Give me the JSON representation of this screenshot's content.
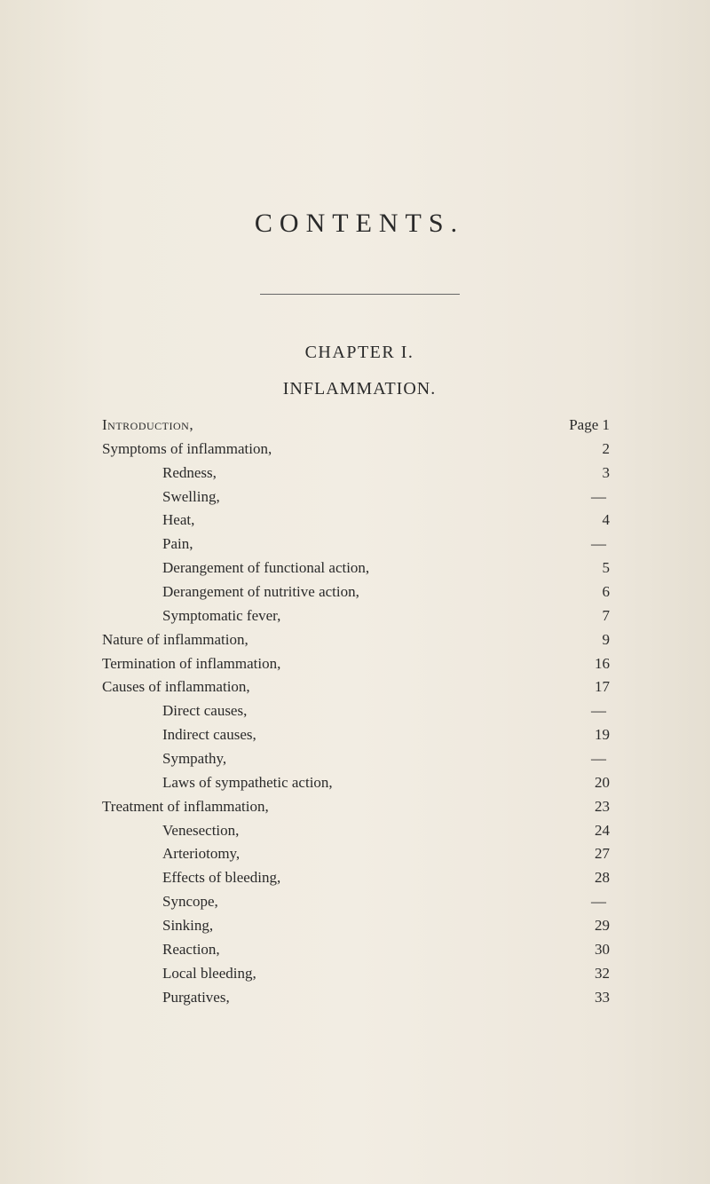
{
  "mainTitle": "CONTENTS.",
  "chapterTitle": "CHAPTER I.",
  "subjectTitle": "INFLAMMATION.",
  "pagePrefix": "Page",
  "entries": [
    {
      "label": "Introduction,",
      "page": "1",
      "indent": 0,
      "smallcaps": true,
      "dashesBetween": 2
    },
    {
      "label": "Symptoms of inflammation,",
      "page": "2",
      "indent": 0,
      "dashesBetween": 2
    },
    {
      "label": "Redness,",
      "page": "3",
      "indent": 1,
      "dashesBetween": 2
    },
    {
      "label": "Swelling,",
      "page": "—",
      "indent": 1,
      "dashesBetween": 2
    },
    {
      "label": "Heat,",
      "page": "4",
      "indent": 1,
      "dashesBetween": 1
    },
    {
      "label": "Pain,",
      "page": "—",
      "indent": 1,
      "dashesBetween": 3
    },
    {
      "label": "Derangement of functional action,",
      "page": "5",
      "indent": 1,
      "dashesBetween": 1
    },
    {
      "label": "Derangement of nutritive action,",
      "page": "6",
      "indent": 1,
      "dashesBetween": 1
    },
    {
      "label": "Symptomatic fever,",
      "page": "7",
      "indent": 1,
      "dashesBetween": 2
    },
    {
      "label": "Nature of inflammation,",
      "page": "9",
      "indent": 0,
      "dashesBetween": 2
    },
    {
      "label": "Termination of inflammation,",
      "page": "16",
      "indent": 0,
      "dashesBetween": 2
    },
    {
      "label": "Causes of inflammation,",
      "page": "17",
      "indent": 0,
      "dashesBetween": 2
    },
    {
      "label": "Direct causes,",
      "page": "—",
      "indent": 1,
      "dashesBetween": 2
    },
    {
      "label": "Indirect causes,",
      "page": "19",
      "indent": 1,
      "dashesBetween": 2
    },
    {
      "label": "Sympathy,",
      "page": "—",
      "indent": 1,
      "dashesBetween": 2
    },
    {
      "label": "Laws of sympathetic action,",
      "page": "20",
      "indent": 1,
      "dashesBetween": 1
    },
    {
      "label": "Treatment of inflammation,",
      "page": "23",
      "indent": 0,
      "dashesBetween": 2
    },
    {
      "label": "Venesection,",
      "page": "24",
      "indent": 1,
      "dashesBetween": 2
    },
    {
      "label": "Arteriotomy,",
      "page": "27",
      "indent": 1,
      "dashesBetween": 2
    },
    {
      "label": "Effects of bleeding,",
      "page": "28",
      "indent": 1,
      "dashesBetween": 2
    },
    {
      "label": "Syncope,",
      "page": "—",
      "indent": 1,
      "dashesBetween": 3
    },
    {
      "label": "Sinking,",
      "page": "29",
      "indent": 1,
      "dashesBetween": 3
    },
    {
      "label": "Reaction,",
      "page": "30",
      "indent": 1,
      "dashesBetween": 2
    },
    {
      "label": "Local bleeding,",
      "page": "32",
      "indent": 1,
      "dashesBetween": 2
    },
    {
      "label": "Purgatives,",
      "page": "33",
      "indent": 1,
      "dashesBetween": 2
    }
  ],
  "colors": {
    "background": "#f0ebe0",
    "text": "#2a2a2a",
    "divider": "#666"
  },
  "typography": {
    "mainTitleSize": 30,
    "chapterTitleSize": 20,
    "bodySize": 17,
    "fontFamily": "Times New Roman"
  }
}
